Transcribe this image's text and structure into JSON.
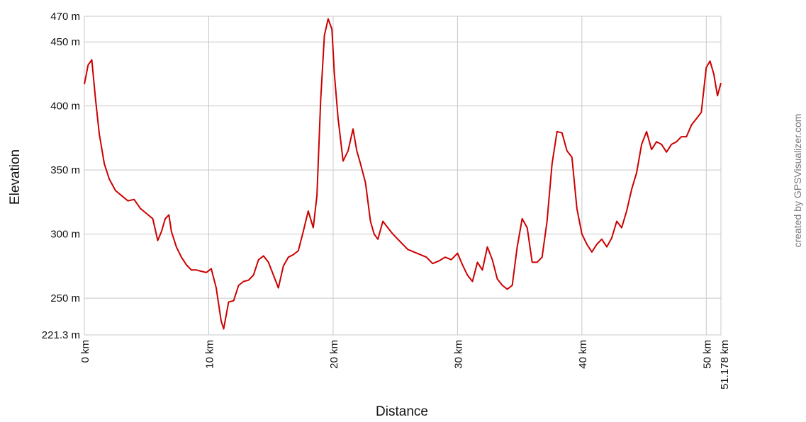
{
  "chart_data": {
    "type": "line",
    "xlabel": "Distance",
    "ylabel": "Elevation",
    "credit": "created by GPSVisualizer.com",
    "xlim": [
      0,
      51.178
    ],
    "ylim": [
      221.3,
      470
    ],
    "x_ticks": [
      {
        "value": 0,
        "label": "0 km"
      },
      {
        "value": 10,
        "label": "10 km"
      },
      {
        "value": 20,
        "label": "20 km"
      },
      {
        "value": 30,
        "label": "30 km"
      },
      {
        "value": 40,
        "label": "40 km"
      },
      {
        "value": 50,
        "label": "50 km"
      },
      {
        "value": 51.178,
        "label": "51.178 km"
      }
    ],
    "y_ticks": [
      {
        "value": 221.3,
        "label": "221.3 m"
      },
      {
        "value": 250,
        "label": "250 m"
      },
      {
        "value": 300,
        "label": "300 m"
      },
      {
        "value": 350,
        "label": "350 m"
      },
      {
        "value": 400,
        "label": "400 m"
      },
      {
        "value": 450,
        "label": "450 m"
      },
      {
        "value": 470,
        "label": "470 m"
      }
    ],
    "grid": true,
    "line_color": "#cc0000",
    "grid_color": "#c8c8c8",
    "series": [
      {
        "x": [
          0,
          0.3,
          0.6,
          0.9,
          1.2,
          1.6,
          2.0,
          2.5,
          3.0,
          3.5,
          4.0,
          4.5,
          5.0,
          5.5,
          5.9,
          6.2,
          6.5,
          6.8,
          7.0,
          7.4,
          7.8,
          8.2,
          8.6,
          9.0,
          9.4,
          9.8,
          10.2,
          10.6,
          11.0,
          11.2,
          11.6,
          12.0,
          12.4,
          12.8,
          13.2,
          13.6,
          14.0,
          14.4,
          14.8,
          15.2,
          15.6,
          16.0,
          16.4,
          16.8,
          17.2,
          17.6,
          18.0,
          18.4,
          18.7,
          19.0,
          19.3,
          19.6,
          19.9,
          20.1,
          20.4,
          20.8,
          21.2,
          21.6,
          21.9,
          22.2,
          22.6,
          23.0,
          23.3,
          23.6,
          24.0,
          24.4,
          24.8,
          25.2,
          25.6,
          26.0,
          26.5,
          27.0,
          27.5,
          28.0,
          28.5,
          29.0,
          29.5,
          30.0,
          30.4,
          30.8,
          31.2,
          31.6,
          32.0,
          32.4,
          32.8,
          33.2,
          33.6,
          34.0,
          34.4,
          34.8,
          35.2,
          35.6,
          36.0,
          36.4,
          36.8,
          37.2,
          37.6,
          38.0,
          38.4,
          38.8,
          39.2,
          39.6,
          40.0,
          40.4,
          40.8,
          41.2,
          41.6,
          42.0,
          42.4,
          42.8,
          43.2,
          43.6,
          44.0,
          44.4,
          44.8,
          45.2,
          45.6,
          46.0,
          46.4,
          46.8,
          47.2,
          47.6,
          48.0,
          48.4,
          48.8,
          49.2,
          49.6,
          50.0,
          50.3,
          50.6,
          50.9,
          51.178
        ],
        "y": [
          417,
          432,
          436,
          405,
          378,
          355,
          343,
          334,
          330,
          326,
          327,
          320,
          316,
          312,
          295,
          302,
          312,
          315,
          302,
          290,
          282,
          276,
          272,
          272,
          271,
          270,
          273,
          258,
          232,
          226,
          247,
          248,
          260,
          263,
          264,
          268,
          280,
          283,
          278,
          268,
          258,
          275,
          282,
          284,
          287,
          302,
          318,
          305,
          330,
          405,
          455,
          468,
          460,
          425,
          390,
          357,
          365,
          382,
          365,
          355,
          340,
          310,
          300,
          296,
          310,
          305,
          300,
          296,
          292,
          288,
          286,
          284,
          282,
          277,
          279,
          282,
          280,
          285,
          276,
          268,
          263,
          278,
          272,
          290,
          280,
          265,
          260,
          257,
          260,
          290,
          312,
          305,
          278,
          278,
          282,
          310,
          355,
          380,
          379,
          365,
          360,
          320,
          300,
          292,
          286,
          292,
          296,
          290,
          297,
          310,
          305,
          318,
          335,
          348,
          370,
          380,
          366,
          372,
          370,
          364,
          370,
          372,
          376,
          376,
          385,
          390,
          395,
          430,
          435,
          425,
          408,
          418
        ]
      }
    ]
  }
}
